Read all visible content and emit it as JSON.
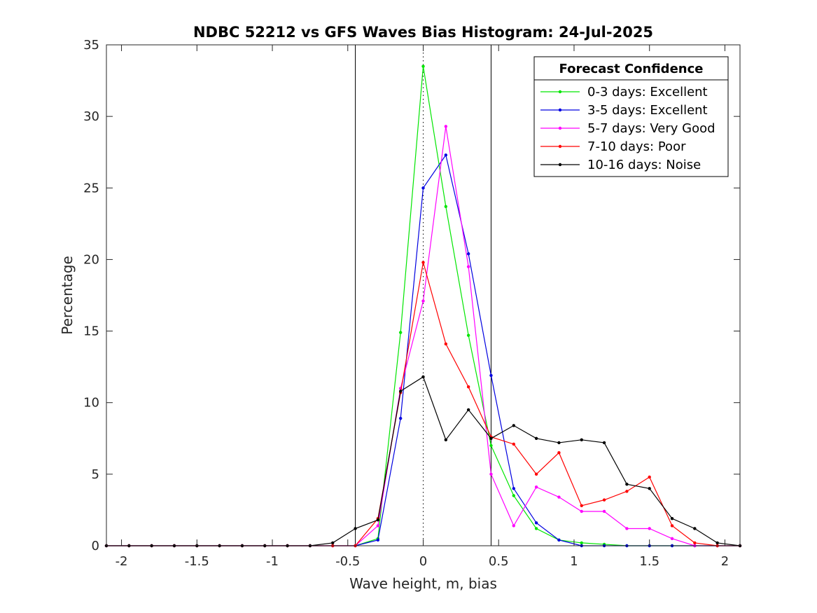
{
  "chart_data": {
    "type": "line",
    "title": "NDBC 52212 vs GFS Waves Bias Histogram: 24-Jul-2025",
    "xlabel": "Wave height, m, bias",
    "ylabel": "Percentage",
    "xlim": [
      -2.1,
      2.1
    ],
    "ylim": [
      0,
      35
    ],
    "xticks": [
      -2,
      -1.5,
      -1,
      -0.5,
      0,
      0.5,
      1,
      1.5,
      2
    ],
    "xtick_labels": [
      "-2",
      "-1.5",
      "-1",
      "-0.5",
      "0",
      "0.5",
      "1",
      "1.5",
      "2"
    ],
    "yticks": [
      0,
      5,
      10,
      15,
      20,
      25,
      30,
      35
    ],
    "ytick_labels": [
      "0",
      "5",
      "10",
      "15",
      "20",
      "25",
      "30",
      "35"
    ],
    "grid": false,
    "legend_title": "Forecast Confidence",
    "legend_position": "top-right",
    "vertical_lines": [
      {
        "x": -0.45,
        "style": "solid",
        "color": "#000000"
      },
      {
        "x": 0,
        "style": "dotted",
        "color": "#000000"
      },
      {
        "x": 0.45,
        "style": "solid",
        "color": "#000000"
      }
    ],
    "x": [
      -2.1,
      -1.95,
      -1.8,
      -1.65,
      -1.5,
      -1.35,
      -1.2,
      -1.05,
      -0.9,
      -0.75,
      -0.6,
      -0.45,
      -0.3,
      -0.15,
      0,
      0.15,
      0.3,
      0.45,
      0.6,
      0.75,
      0.9,
      1.05,
      1.2,
      1.35,
      1.5,
      1.65,
      1.8,
      1.95,
      2.1
    ],
    "series": [
      {
        "name": "0-3 days: Excellent",
        "color": "#00e600",
        "values": [
          0,
          0,
          0,
          0,
          0,
          0,
          0,
          0,
          0,
          0,
          0,
          0,
          0.5,
          14.9,
          33.5,
          23.7,
          14.7,
          7.0,
          3.5,
          1.2,
          0.4,
          0.2,
          0.1,
          0,
          0,
          0,
          0,
          0,
          0
        ]
      },
      {
        "name": "3-5 days: Excellent",
        "color": "#0000e0",
        "values": [
          0,
          0,
          0,
          0,
          0,
          0,
          0,
          0,
          0,
          0,
          0,
          0,
          0.4,
          8.9,
          25.0,
          27.3,
          20.4,
          11.9,
          4.0,
          1.6,
          0.4,
          0,
          0,
          0,
          0,
          0,
          0,
          0,
          0
        ]
      },
      {
        "name": "5-7 days: Very Good",
        "color": "#ff00ff",
        "values": [
          0,
          0,
          0,
          0,
          0,
          0,
          0,
          0,
          0,
          0,
          0,
          0,
          1.4,
          11.0,
          17.1,
          29.3,
          19.5,
          5.0,
          1.4,
          4.1,
          3.4,
          2.4,
          2.4,
          1.2,
          1.2,
          0.5,
          0,
          0,
          0
        ]
      },
      {
        "name": "7-10 days: Poor",
        "color": "#ff0000",
        "values": [
          0,
          0,
          0,
          0,
          0,
          0,
          0,
          0,
          0,
          0,
          0,
          0,
          1.9,
          10.7,
          19.8,
          14.1,
          11.1,
          7.6,
          7.1,
          5.0,
          6.5,
          2.8,
          3.2,
          3.8,
          4.8,
          1.4,
          0.2,
          0,
          0
        ]
      },
      {
        "name": "10-16 days: Noise",
        "color": "#000000",
        "values": [
          0,
          0,
          0,
          0,
          0,
          0,
          0,
          0,
          0,
          0,
          0.2,
          1.2,
          1.8,
          10.8,
          11.8,
          7.4,
          9.5,
          7.5,
          8.4,
          7.5,
          7.2,
          7.4,
          7.2,
          4.3,
          4.0,
          1.9,
          1.2,
          0.2,
          0
        ]
      }
    ]
  }
}
